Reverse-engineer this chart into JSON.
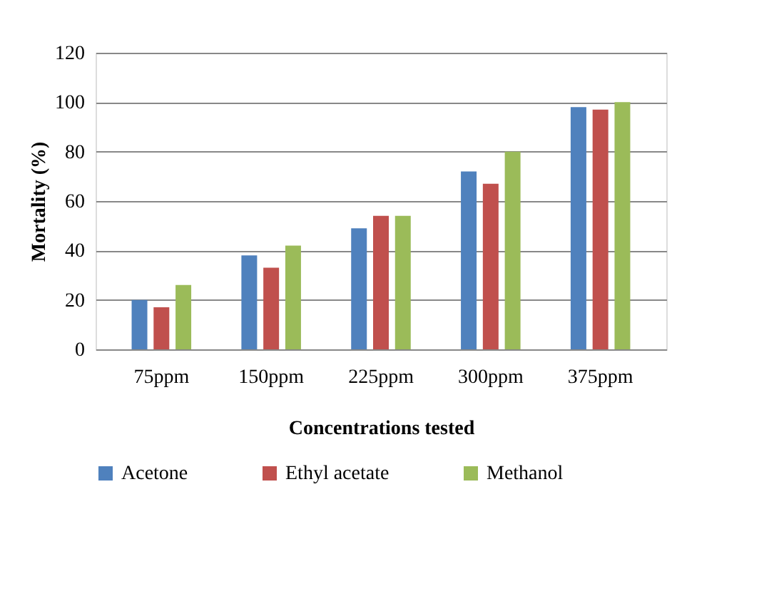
{
  "chart_data": {
    "type": "bar",
    "xlabel": "Concentrations tested",
    "ylabel": "Mortality (%)",
    "categories": [
      "75ppm",
      "150ppm",
      "225ppm",
      "300ppm",
      "375ppm"
    ],
    "series": [
      {
        "name": "Acetone",
        "color": "#4f81bd",
        "values": [
          20,
          38,
          49,
          72,
          98
        ]
      },
      {
        "name": "Ethyl acetate",
        "color": "#c0504d",
        "values": [
          17,
          33,
          54,
          67,
          97
        ]
      },
      {
        "name": "Methanol",
        "color": "#9bbb59",
        "values": [
          26,
          42,
          54,
          80,
          100
        ]
      }
    ],
    "ylim": [
      0,
      120
    ],
    "yticks": [
      0,
      20,
      40,
      60,
      80,
      100,
      120
    ],
    "grid": "y",
    "legend": "bottom"
  }
}
